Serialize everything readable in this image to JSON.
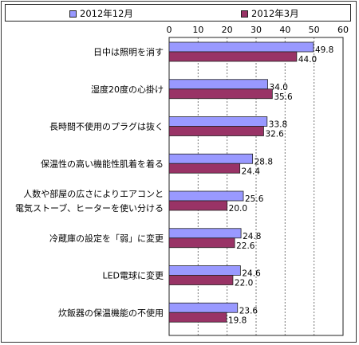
{
  "chart_data": {
    "type": "bar",
    "orientation": "horizontal",
    "categories": [
      [
        "日中は照明を消す"
      ],
      [
        "湿度20度の心掛け"
      ],
      [
        "長時間不使用のプラグは抜く"
      ],
      [
        "保温性の高い機能性肌着を着る"
      ],
      [
        "人数や部屋の広さによりエアコンと",
        "電気ストーブ、ヒーターを使い分ける"
      ],
      [
        "冷蔵庫の設定を「弱」に変更"
      ],
      [
        "LED電球に変更"
      ],
      [
        "炊飯器の保温機能の不使用"
      ]
    ],
    "series": [
      {
        "name": "2012年12月",
        "color": "#9999ff",
        "values": [
          49.8,
          34.0,
          33.8,
          28.8,
          25.6,
          24.8,
          24.6,
          23.6
        ],
        "labels": [
          "49.8",
          "34.0",
          "33.8",
          "28.8",
          "25.6",
          "24.8",
          "24.6",
          "23.6"
        ]
      },
      {
        "name": "2012年3月",
        "color": "#993366",
        "values": [
          44.0,
          35.6,
          32.6,
          24.4,
          20.0,
          22.6,
          22.0,
          19.8
        ],
        "labels": [
          "44.0",
          "35.6",
          "32.6",
          "24.4",
          "20.0",
          "22.6",
          "22.0",
          "19.8"
        ]
      }
    ],
    "xlim": [
      0,
      60
    ],
    "ticks": [
      "0",
      "10",
      "20",
      "30",
      "40",
      "50",
      "60"
    ],
    "grid": true,
    "legend_position": "top"
  }
}
